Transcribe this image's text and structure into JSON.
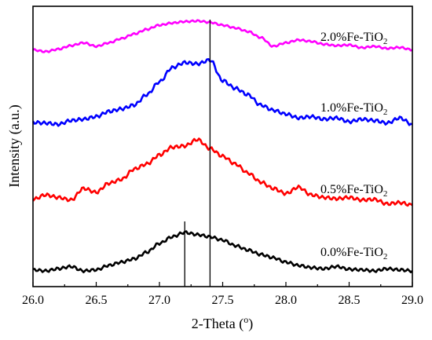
{
  "chart_data": {
    "type": "line",
    "title": "",
    "xlabel": "2-Theta (o)",
    "xlabel_main": "2-Theta (",
    "xlabel_sup": "o",
    "xlabel_end": ")",
    "ylabel": "Intensity (a.u.)",
    "xlim": [
      26.0,
      29.0
    ],
    "xticks": [
      "26.0",
      "26.5",
      "27.0",
      "27.5",
      "28.0",
      "28.5",
      "29.0"
    ],
    "grid": false,
    "legend": "inline labels",
    "y_units": "arbitrary (stacked traces, relative intensity)",
    "reference_lines_x": [
      27.2,
      27.4
    ],
    "series": [
      {
        "name": "2.0%Fe-TiO2",
        "label_main": "2.0%Fe-TiO",
        "label_sub": "2",
        "color": "#ff00ff",
        "offset": 3,
        "x": [
          26.0,
          26.1,
          26.2,
          26.3,
          26.4,
          26.5,
          26.6,
          26.7,
          26.8,
          26.9,
          27.0,
          27.1,
          27.2,
          27.3,
          27.4,
          27.5,
          27.6,
          27.7,
          27.8,
          27.9,
          28.0,
          28.1,
          28.2,
          28.3,
          28.4,
          28.5,
          28.6,
          28.7,
          28.8,
          28.9,
          29.0
        ],
        "values": [
          0.1,
          0.05,
          0.12,
          0.22,
          0.3,
          0.2,
          0.3,
          0.42,
          0.55,
          0.68,
          0.8,
          0.86,
          0.9,
          0.92,
          0.88,
          0.8,
          0.72,
          0.62,
          0.45,
          0.2,
          0.3,
          0.38,
          0.34,
          0.26,
          0.22,
          0.24,
          0.16,
          0.2,
          0.14,
          0.17,
          0.1
        ]
      },
      {
        "name": "1.0%Fe-TiO2",
        "label_main": "1.0%Fe-TiO",
        "label_sub": "2",
        "color": "#0000ff",
        "offset": 2,
        "x": [
          26.0,
          26.1,
          26.2,
          26.3,
          26.4,
          26.5,
          26.6,
          26.7,
          26.8,
          26.9,
          27.0,
          27.1,
          27.2,
          27.3,
          27.4,
          27.5,
          27.6,
          27.7,
          27.8,
          27.9,
          28.0,
          28.1,
          28.2,
          28.3,
          28.4,
          28.5,
          28.6,
          28.7,
          28.8,
          28.9,
          29.0
        ],
        "values": [
          0.05,
          0.04,
          0.02,
          0.08,
          0.1,
          0.14,
          0.22,
          0.26,
          0.32,
          0.48,
          0.68,
          0.9,
          0.98,
          0.96,
          1.02,
          0.7,
          0.58,
          0.48,
          0.32,
          0.24,
          0.18,
          0.12,
          0.14,
          0.1,
          0.12,
          0.06,
          0.1,
          0.08,
          0.04,
          0.12,
          0.02
        ]
      },
      {
        "name": "0.5%Fe-TiO2",
        "label_main": "0.5%Fe-TiO",
        "label_sub": "2",
        "color": "#ff0000",
        "offset": 1,
        "x": [
          26.0,
          26.1,
          26.2,
          26.3,
          26.4,
          26.5,
          26.6,
          26.7,
          26.8,
          26.9,
          27.0,
          27.1,
          27.2,
          27.3,
          27.4,
          27.5,
          27.6,
          27.7,
          27.8,
          27.9,
          28.0,
          28.1,
          28.2,
          28.3,
          28.4,
          28.5,
          28.6,
          28.7,
          28.8,
          28.9,
          29.0
        ],
        "values": [
          0.05,
          0.12,
          0.08,
          0.04,
          0.22,
          0.16,
          0.3,
          0.36,
          0.52,
          0.6,
          0.74,
          0.86,
          0.88,
          0.98,
          0.84,
          0.72,
          0.6,
          0.46,
          0.32,
          0.22,
          0.14,
          0.24,
          0.12,
          0.08,
          0.06,
          0.08,
          0.04,
          0.05,
          -0.02,
          0.0,
          -0.04
        ]
      },
      {
        "name": "0.0%Fe-TiO2",
        "label_main": "0.0%Fe-TiO",
        "label_sub": "2",
        "color": "#000000",
        "offset": 0,
        "x": [
          26.0,
          26.1,
          26.2,
          26.3,
          26.4,
          26.5,
          26.6,
          26.7,
          26.8,
          26.9,
          27.0,
          27.1,
          27.2,
          27.3,
          27.4,
          27.5,
          27.6,
          27.7,
          27.8,
          27.9,
          28.0,
          28.1,
          28.2,
          28.3,
          28.4,
          28.5,
          28.6,
          28.7,
          28.8,
          28.9,
          29.0
        ],
        "values": [
          0.02,
          0.0,
          0.04,
          0.08,
          0.0,
          0.02,
          0.1,
          0.16,
          0.22,
          0.34,
          0.5,
          0.62,
          0.7,
          0.66,
          0.62,
          0.56,
          0.46,
          0.38,
          0.3,
          0.24,
          0.16,
          0.1,
          0.06,
          0.04,
          0.08,
          0.03,
          0.02,
          0.0,
          0.04,
          0.02,
          0.0
        ]
      }
    ]
  }
}
